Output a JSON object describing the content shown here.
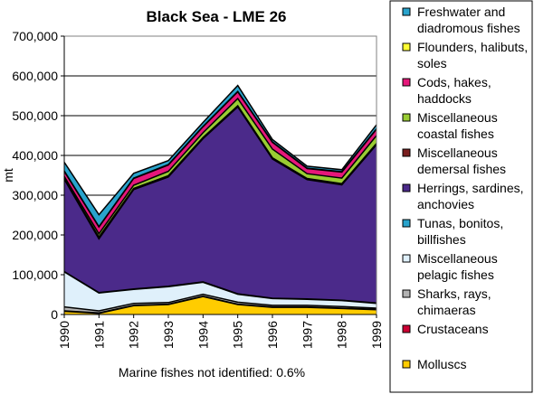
{
  "chart_data": {
    "type": "area",
    "stacked": true,
    "title": "Black Sea - LME 26",
    "ylabel": "mt",
    "xlabel": "",
    "ylim": [
      0,
      700000
    ],
    "yticks": [
      "0",
      "100,000",
      "200,000",
      "300,000",
      "400,000",
      "500,000",
      "600,000",
      "700,000"
    ],
    "ytick_values": [
      0,
      100000,
      200000,
      300000,
      400000,
      500000,
      600000,
      700000
    ],
    "x": [
      "1990",
      "1991",
      "1992",
      "1993",
      "1994",
      "1995",
      "1996",
      "1997",
      "1998",
      "1999"
    ],
    "note": "Marine fishes not identified: 0.6%",
    "legend_position": "right",
    "series": [
      {
        "name": "Molluscs",
        "color": "#ffcc00",
        "values": [
          8000,
          3000,
          22000,
          25000,
          45000,
          25000,
          18000,
          18000,
          15000,
          12000
        ]
      },
      {
        "name": "Crustaceans",
        "color": "#cc0033",
        "values": [
          1000,
          1000,
          1000,
          1000,
          1000,
          1000,
          1000,
          1000,
          1000,
          1000
        ]
      },
      {
        "name": "Sharks, rays,\nchimaeras",
        "color": "#b3b3b3",
        "values": [
          10000,
          5000,
          5000,
          4000,
          5000,
          5000,
          4000,
          4000,
          4000,
          3000
        ]
      },
      {
        "name": "Miscellaneous\npelagic fishes",
        "color": "#dff0fb",
        "values": [
          88000,
          45000,
          35000,
          40000,
          30000,
          20000,
          17000,
          15000,
          15000,
          12000
        ]
      },
      {
        "name": "Tunas, bonitos,\nbillfishes",
        "color": "#29a3cc",
        "values": [
          1000,
          1000,
          1000,
          1000,
          1000,
          1000,
          1000,
          1000,
          1000,
          1000
        ]
      },
      {
        "name": "Herrings, sardines,\nanchovies",
        "color": "#4b2a8a",
        "values": [
          232000,
          135000,
          250000,
          275000,
          360000,
          470000,
          350000,
          300000,
          290000,
          398000
        ]
      },
      {
        "name": "Miscellaneous\ndemersal fishes",
        "color": "#7a1f1f",
        "values": [
          2000,
          5000,
          3000,
          3000,
          3000,
          3000,
          3000,
          3000,
          3000,
          3000
        ]
      },
      {
        "name": "Miscellaneous\ncoastal fishes",
        "color": "#99cc33",
        "values": [
          5000,
          8000,
          8000,
          11000,
          12000,
          18000,
          22000,
          12000,
          14000,
          20000
        ]
      },
      {
        "name": "Cods, hakes,\nhaddocks",
        "color": "#e6177a",
        "values": [
          13000,
          17000,
          17000,
          16000,
          15000,
          17000,
          17000,
          13000,
          15000,
          16000
        ]
      },
      {
        "name": "Flounders, halibuts,\nsoles",
        "color": "#ffff33",
        "values": [
          1000,
          1000,
          1000,
          1000,
          1000,
          1000,
          1000,
          1000,
          1000,
          1000
        ]
      },
      {
        "name": "Freshwater and\ndiadromous fishes",
        "color": "#29a3cc",
        "values": [
          22000,
          30000,
          12000,
          10000,
          10000,
          15000,
          6000,
          5000,
          5000,
          10000
        ]
      }
    ]
  }
}
